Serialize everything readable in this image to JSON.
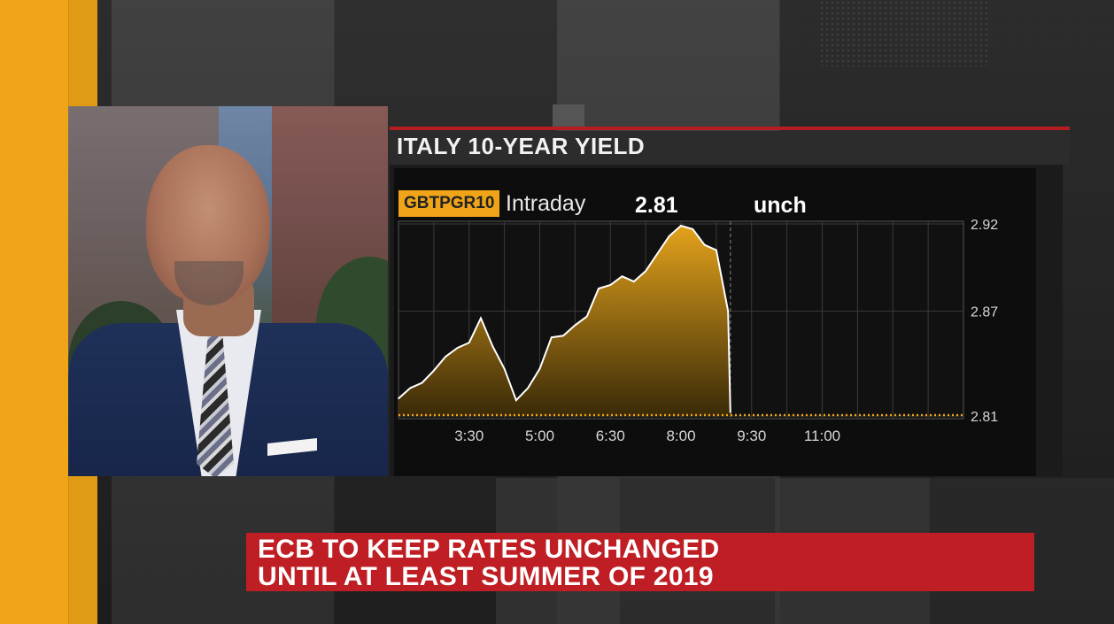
{
  "headline": {
    "line1": "ECB TO KEEP RATES UNCHANGED",
    "line2": "UNTIL AT LEAST SUMMER OF 2019"
  },
  "colors": {
    "accent": "#f0a518",
    "headline_bg": "#be1e24",
    "title_rule": "#b51d23"
  },
  "chart_data": {
    "type": "area",
    "title": "ITALY 10-YEAR YIELD",
    "ticker": "GBTPGR10",
    "mode": "Intraday",
    "last": "2.81",
    "change": "unch",
    "x_labels": [
      "3:30",
      "5:00",
      "6:30",
      "8:00",
      "9:30",
      "11:00"
    ],
    "y_labels": [
      "2.92",
      "2.87",
      "2.81"
    ],
    "xlim": [
      1.0,
      13.0
    ],
    "ylim": [
      2.81,
      2.92
    ],
    "previous_close": 2.81,
    "x": [
      1.0,
      1.25,
      1.5,
      1.75,
      2.0,
      2.25,
      2.5,
      2.75,
      3.0,
      3.25,
      3.5,
      3.75,
      4.0,
      4.25,
      4.5,
      4.75,
      5.0,
      5.25,
      5.5,
      5.75,
      6.0,
      6.25,
      6.5,
      6.75,
      7.0,
      7.25,
      7.5,
      7.75,
      8.0,
      8.05
    ],
    "y": [
      2.82,
      2.826,
      2.829,
      2.836,
      2.844,
      2.849,
      2.852,
      2.866,
      2.85,
      2.837,
      2.819,
      2.826,
      2.837,
      2.855,
      2.856,
      2.862,
      2.867,
      2.883,
      2.885,
      2.89,
      2.887,
      2.893,
      2.903,
      2.913,
      2.919,
      2.917,
      2.908,
      2.905,
      2.87,
      2.812
    ],
    "grid": true
  }
}
